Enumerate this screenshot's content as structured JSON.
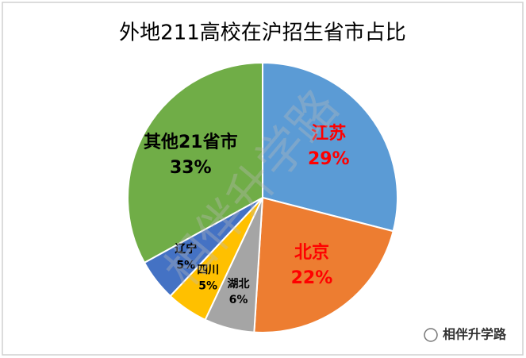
{
  "chart_data": {
    "type": "pie",
    "title": "外地211高校在沪招生省市占比",
    "categories": [
      "江苏",
      "北京",
      "湖北",
      "四川",
      "辽宁",
      "其他21省市"
    ],
    "values": [
      29,
      22,
      6,
      5,
      5,
      33
    ],
    "value_labels": [
      "29%",
      "22%",
      "6%",
      "5%",
      "5%",
      "33%"
    ],
    "colors": [
      "#5b9bd5",
      "#ed7d31",
      "#a5a5a5",
      "#ffc000",
      "#4472c4",
      "#70ad47"
    ],
    "label_colors": [
      "#ff0000",
      "#ff0000",
      "#000000",
      "#000000",
      "#000000",
      "#000000"
    ],
    "watermark": "相伴升学路",
    "logo_text": "相伴升学路"
  }
}
